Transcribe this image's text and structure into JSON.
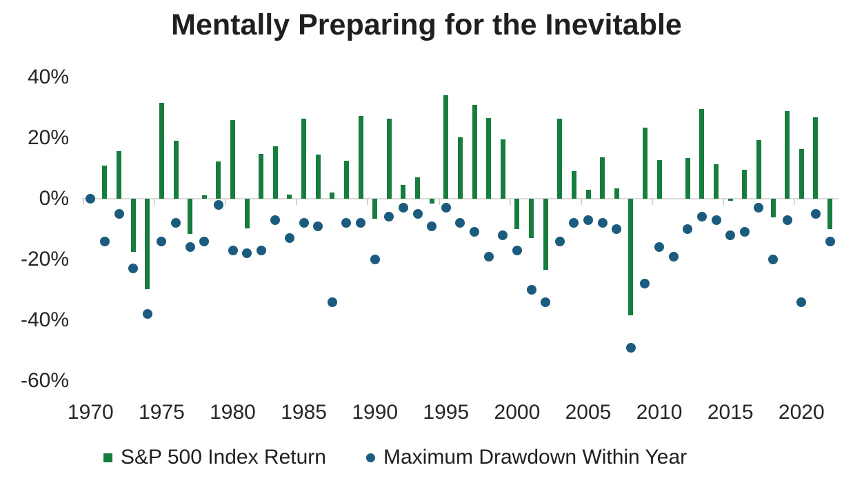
{
  "chart_data": {
    "type": "bar",
    "title": "Mentally Preparing for the Inevitable",
    "xlabel": "",
    "ylabel": "",
    "ylim": [
      -60,
      40
    ],
    "grid": false,
    "legend_position": "bottom",
    "y_tick_values": [
      40,
      20,
      0,
      -20,
      -40,
      -60
    ],
    "y_tick_labels": [
      "40%",
      "20%",
      "0%",
      "-20%",
      "-40%",
      "-60%"
    ],
    "x_tick_years": [
      1970,
      1975,
      1980,
      1985,
      1990,
      1995,
      2000,
      2005,
      2010,
      2015,
      2020
    ],
    "x_tick_labels": [
      "1970",
      "1975",
      "1980",
      "1985",
      "1990",
      "1995",
      "2000",
      "2005",
      "2010",
      "2015",
      "2020"
    ],
    "years": [
      1970,
      1971,
      1972,
      1973,
      1974,
      1975,
      1976,
      1977,
      1978,
      1979,
      1980,
      1981,
      1982,
      1983,
      1984,
      1985,
      1986,
      1987,
      1988,
      1989,
      1990,
      1991,
      1992,
      1993,
      1994,
      1995,
      1996,
      1997,
      1998,
      1999,
      2000,
      2001,
      2002,
      2003,
      2004,
      2005,
      2006,
      2007,
      2008,
      2009,
      2010,
      2011,
      2012,
      2013,
      2014,
      2015,
      2016,
      2017,
      2018,
      2019,
      2020,
      2021,
      2022
    ],
    "series": [
      {
        "name": "S&P 500 Index Return",
        "type": "bar",
        "color": "#177d3e",
        "values": [
          0.1,
          10.8,
          15.6,
          -17.4,
          -29.7,
          31.5,
          19.1,
          -11.5,
          1.1,
          12.3,
          25.8,
          -9.7,
          14.8,
          17.3,
          1.4,
          26.3,
          14.6,
          2.0,
          12.4,
          27.3,
          -6.6,
          26.3,
          4.5,
          7.1,
          -1.5,
          34.1,
          20.3,
          31.0,
          26.7,
          19.5,
          -10.1,
          -13.0,
          -23.4,
          26.4,
          9.0,
          3.0,
          13.6,
          3.5,
          -38.5,
          23.5,
          12.8,
          0.0,
          13.4,
          29.6,
          11.4,
          -0.7,
          9.5,
          19.4,
          -6.2,
          28.9,
          16.3,
          26.9,
          -10.0
        ]
      },
      {
        "name": "Maximum Drawdown Within Year",
        "type": "scatter",
        "color": "#1b5c7e",
        "values": [
          0,
          -14,
          -5,
          -23,
          -38,
          -14,
          -8,
          -16,
          -14,
          -2,
          -17,
          -18,
          -17,
          -7,
          -13,
          -8,
          -9,
          -34,
          -8,
          -8,
          -20,
          -6,
          -3,
          -5,
          -9,
          -3,
          -8,
          -11,
          -19,
          -12,
          -17,
          -30,
          -34,
          -14,
          -8,
          -7,
          -8,
          -10,
          -49,
          -28,
          -16,
          -19,
          -10,
          -6,
          -7,
          -12,
          -11,
          -3,
          -20,
          -7,
          -34,
          -5,
          -14
        ]
      }
    ],
    "axis_color": "#d9d9d9"
  }
}
